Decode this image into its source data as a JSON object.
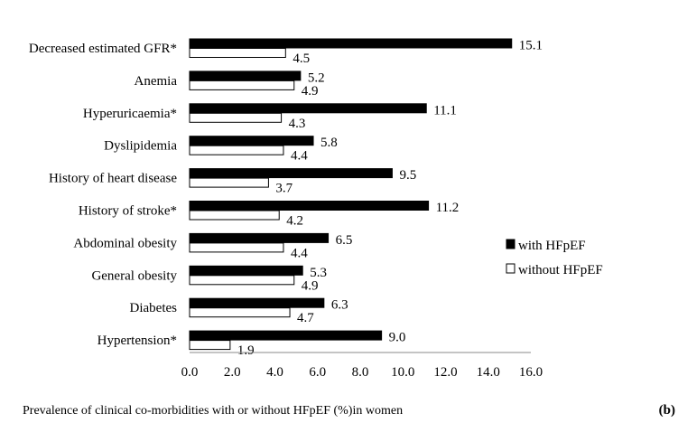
{
  "chart_data": {
    "type": "bar",
    "orientation": "horizontal",
    "categories": [
      "Decreased estimated GFR*",
      "Anemia",
      "Hyperuricaemia*",
      "Dyslipidemia",
      "History of heart disease",
      "History of stroke*",
      "Abdominal obesity",
      "General obesity",
      "Diabetes",
      "Hypertension*"
    ],
    "series": [
      {
        "name": "with HFpEF",
        "color": "#000000",
        "values": [
          15.1,
          5.2,
          11.1,
          5.8,
          9.5,
          11.2,
          6.5,
          5.3,
          6.3,
          9.0
        ],
        "labels": [
          "15.1",
          "5.2",
          "11.1",
          "5.8",
          "9.5",
          "11.2",
          "6.5",
          "5.3",
          "6.3",
          "9.0"
        ]
      },
      {
        "name": "without HFpEF",
        "color": "#ffffff",
        "values": [
          4.5,
          4.9,
          4.3,
          4.4,
          3.7,
          4.2,
          4.4,
          4.9,
          4.7,
          1.9
        ],
        "labels": [
          "4.5",
          "4.9",
          "4.3",
          "4.4",
          "3.7",
          "4.2",
          "4.4",
          "4.9",
          "4.7",
          "1.9"
        ]
      }
    ],
    "xlim": [
      0,
      16
    ],
    "xticks": [
      "0.0",
      "2.0",
      "4.0",
      "6.0",
      "8.0",
      "10.0",
      "12.0",
      "14.0",
      "16.0"
    ],
    "xlabel": "Prevalence of clinical co-morbidities with or without HFpEF (%)in women",
    "panel_label": "(b)",
    "legend_position": "right",
    "grid": false
  }
}
